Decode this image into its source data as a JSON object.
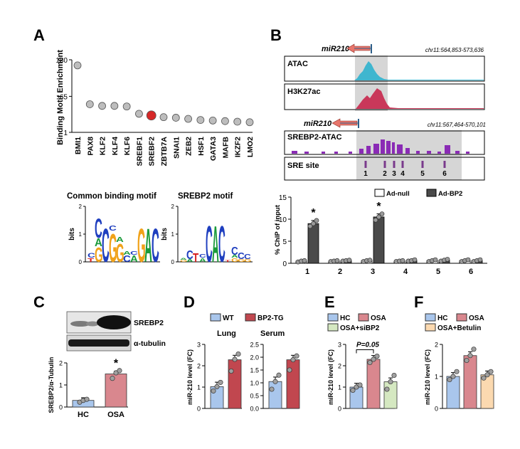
{
  "panels": {
    "A": "A",
    "B": "B",
    "C": "C",
    "D": "D",
    "E": "E",
    "F": "F"
  },
  "colors": {
    "dot_gray": "#bdbdbd",
    "dot_red": "#d62828",
    "label_red": "#d62828",
    "atac": "#3fb6cf",
    "h3k27ac": "#c9385a",
    "srebp2atac": "#8a2bb5",
    "site": "#7a3a8c",
    "highlight": "#d6d6d6",
    "hc": "#a9c6ec",
    "osa": "#d9878e",
    "tg": "#c1474f",
    "sibp2": "#d5e8c1",
    "betulin": "#fbd9b0",
    "bp2dark": "#4a4a4a",
    "tubulin_c": "#e9a0a3",
    "arrow": "#e8756b",
    "arrow_dark": "#2d5f8a"
  },
  "chart_data": [
    {
      "id": "A-top",
      "type": "scatter",
      "ylabel": "Binding Motif Enrichment",
      "yticks": [
        "130",
        "65",
        "1"
      ],
      "categories": [
        "BMI1",
        "PAX8",
        "KLF2",
        "KLF4",
        "KLF6",
        "SREBF1",
        "SREBF2",
        "ZBTB7A",
        "SNAI1",
        "ZEB2",
        "HSF1",
        "GATA3",
        "MAFB",
        "IKZF2",
        "LMO2"
      ],
      "values": [
        120,
        51,
        48,
        48,
        47,
        34,
        31,
        28,
        27,
        25,
        23,
        22,
        21,
        20,
        19
      ],
      "highlight_index": 6
    },
    {
      "id": "A-motifs",
      "type": "other",
      "titles": [
        "Common binding motif",
        "SREBP2 motif"
      ],
      "ylabel": "bits",
      "yticks": [
        "2",
        "1",
        "0"
      ]
    },
    {
      "id": "B-tracks",
      "type": "other",
      "gene": "miR210",
      "coords": [
        "chr11:564,853-573,636",
        "chr11:567,464-570,101"
      ],
      "tracks": [
        "ATAC",
        "H3K27ac",
        "SREBP2-ATAC",
        "SRE site"
      ],
      "sites": [
        "1",
        "2",
        "3",
        "4",
        "5",
        "6"
      ]
    },
    {
      "id": "B-bar",
      "type": "bar",
      "ylabel": "% ChIP of input",
      "yticks": [
        "0",
        "5",
        "10",
        "15"
      ],
      "ylim": [
        0,
        15
      ],
      "categories": [
        "1",
        "2",
        "3",
        "4",
        "5",
        "6"
      ],
      "series": [
        {
          "name": "Ad-null",
          "values": [
            0.5,
            0.5,
            0.6,
            0.5,
            0.6,
            0.6
          ]
        },
        {
          "name": "Ad-BP2",
          "values": [
            9.0,
            0.6,
            10.5,
            0.6,
            0.7,
            0.6
          ]
        }
      ],
      "points": [
        [
          [
            0.3,
            0.5,
            0.6
          ],
          [
            8.4,
            9.0,
            9.7
          ]
        ],
        [
          [
            0.4,
            0.5,
            0.6
          ],
          [
            0.5,
            0.6,
            0.7
          ]
        ],
        [
          [
            0.4,
            0.6,
            0.7
          ],
          [
            9.8,
            10.5,
            11.2
          ]
        ],
        [
          [
            0.4,
            0.5,
            0.6
          ],
          [
            0.5,
            0.6,
            0.8
          ]
        ],
        [
          [
            0.4,
            0.6,
            0.8
          ],
          [
            0.5,
            0.7,
            0.9
          ]
        ],
        [
          [
            0.4,
            0.6,
            0.8
          ],
          [
            0.4,
            0.6,
            0.8
          ]
        ]
      ],
      "star": "*",
      "sig_indices": [
        0,
        2
      ]
    },
    {
      "id": "C-blot",
      "type": "other",
      "labels": [
        "SREBP2",
        "α-tubulin"
      ]
    },
    {
      "id": "C-bar",
      "type": "bar",
      "ylabel": "SREBP2/α-Tubulin",
      "yticks": [
        "0",
        "1",
        "2"
      ],
      "ylim": [
        0,
        2
      ],
      "categories": [
        "HC",
        "OSA"
      ],
      "values": [
        0.3,
        1.5
      ],
      "points": [
        [
          0.22,
          0.3,
          0.35
        ],
        [
          1.3,
          1.55,
          1.65
        ]
      ],
      "star": "*"
    },
    {
      "id": "D-lung",
      "type": "bar",
      "title": "Lung",
      "ylabel": "miR-210 level (FC)",
      "yticks": [
        "0",
        "1",
        "2",
        "3"
      ],
      "ylim": [
        0,
        3
      ],
      "categories": [
        "WT",
        "BP2-TG"
      ],
      "values": [
        1.02,
        2.28
      ],
      "points": [
        [
          0.82,
          1.02,
          1.22
        ],
        [
          1.75,
          2.3,
          2.55
        ]
      ]
    },
    {
      "id": "D-serum",
      "type": "bar",
      "title": "Serum",
      "yticks": [
        "0.0",
        "0.5",
        "1.0",
        "1.5",
        "2.0",
        "2.5"
      ],
      "ylim": [
        0,
        2.5
      ],
      "categories": [
        "WT",
        "BP2-TG"
      ],
      "values": [
        1.05,
        1.9
      ],
      "points": [
        [
          0.75,
          1.05,
          1.3
        ],
        [
          1.5,
          1.9,
          2.05
        ]
      ]
    },
    {
      "id": "E",
      "type": "bar",
      "ylabel": "miR-210 level (FC)",
      "yticks": [
        "0",
        "1",
        "2",
        "3"
      ],
      "ylim": [
        0,
        3
      ],
      "categories": [
        "HC",
        "OSA",
        "OSA+siBP2"
      ],
      "values": [
        1.0,
        2.3,
        1.25
      ],
      "points": [
        [
          0.85,
          1.0,
          1.1
        ],
        [
          2.15,
          2.3,
          2.45
        ],
        [
          0.9,
          1.25,
          1.55
        ]
      ],
      "annotation": "P=0.05"
    },
    {
      "id": "F",
      "type": "bar",
      "ylabel": "miR-210 level (FC)",
      "yticks": [
        "0",
        "1",
        "2"
      ],
      "ylim": [
        0,
        2
      ],
      "categories": [
        "HC",
        "OSA",
        "OSA+Betulin"
      ],
      "values": [
        1.0,
        1.65,
        1.05
      ],
      "points": [
        [
          0.9,
          1.0,
          1.15
        ],
        [
          1.5,
          1.65,
          1.85
        ],
        [
          0.95,
          1.05,
          1.15
        ]
      ]
    }
  ]
}
